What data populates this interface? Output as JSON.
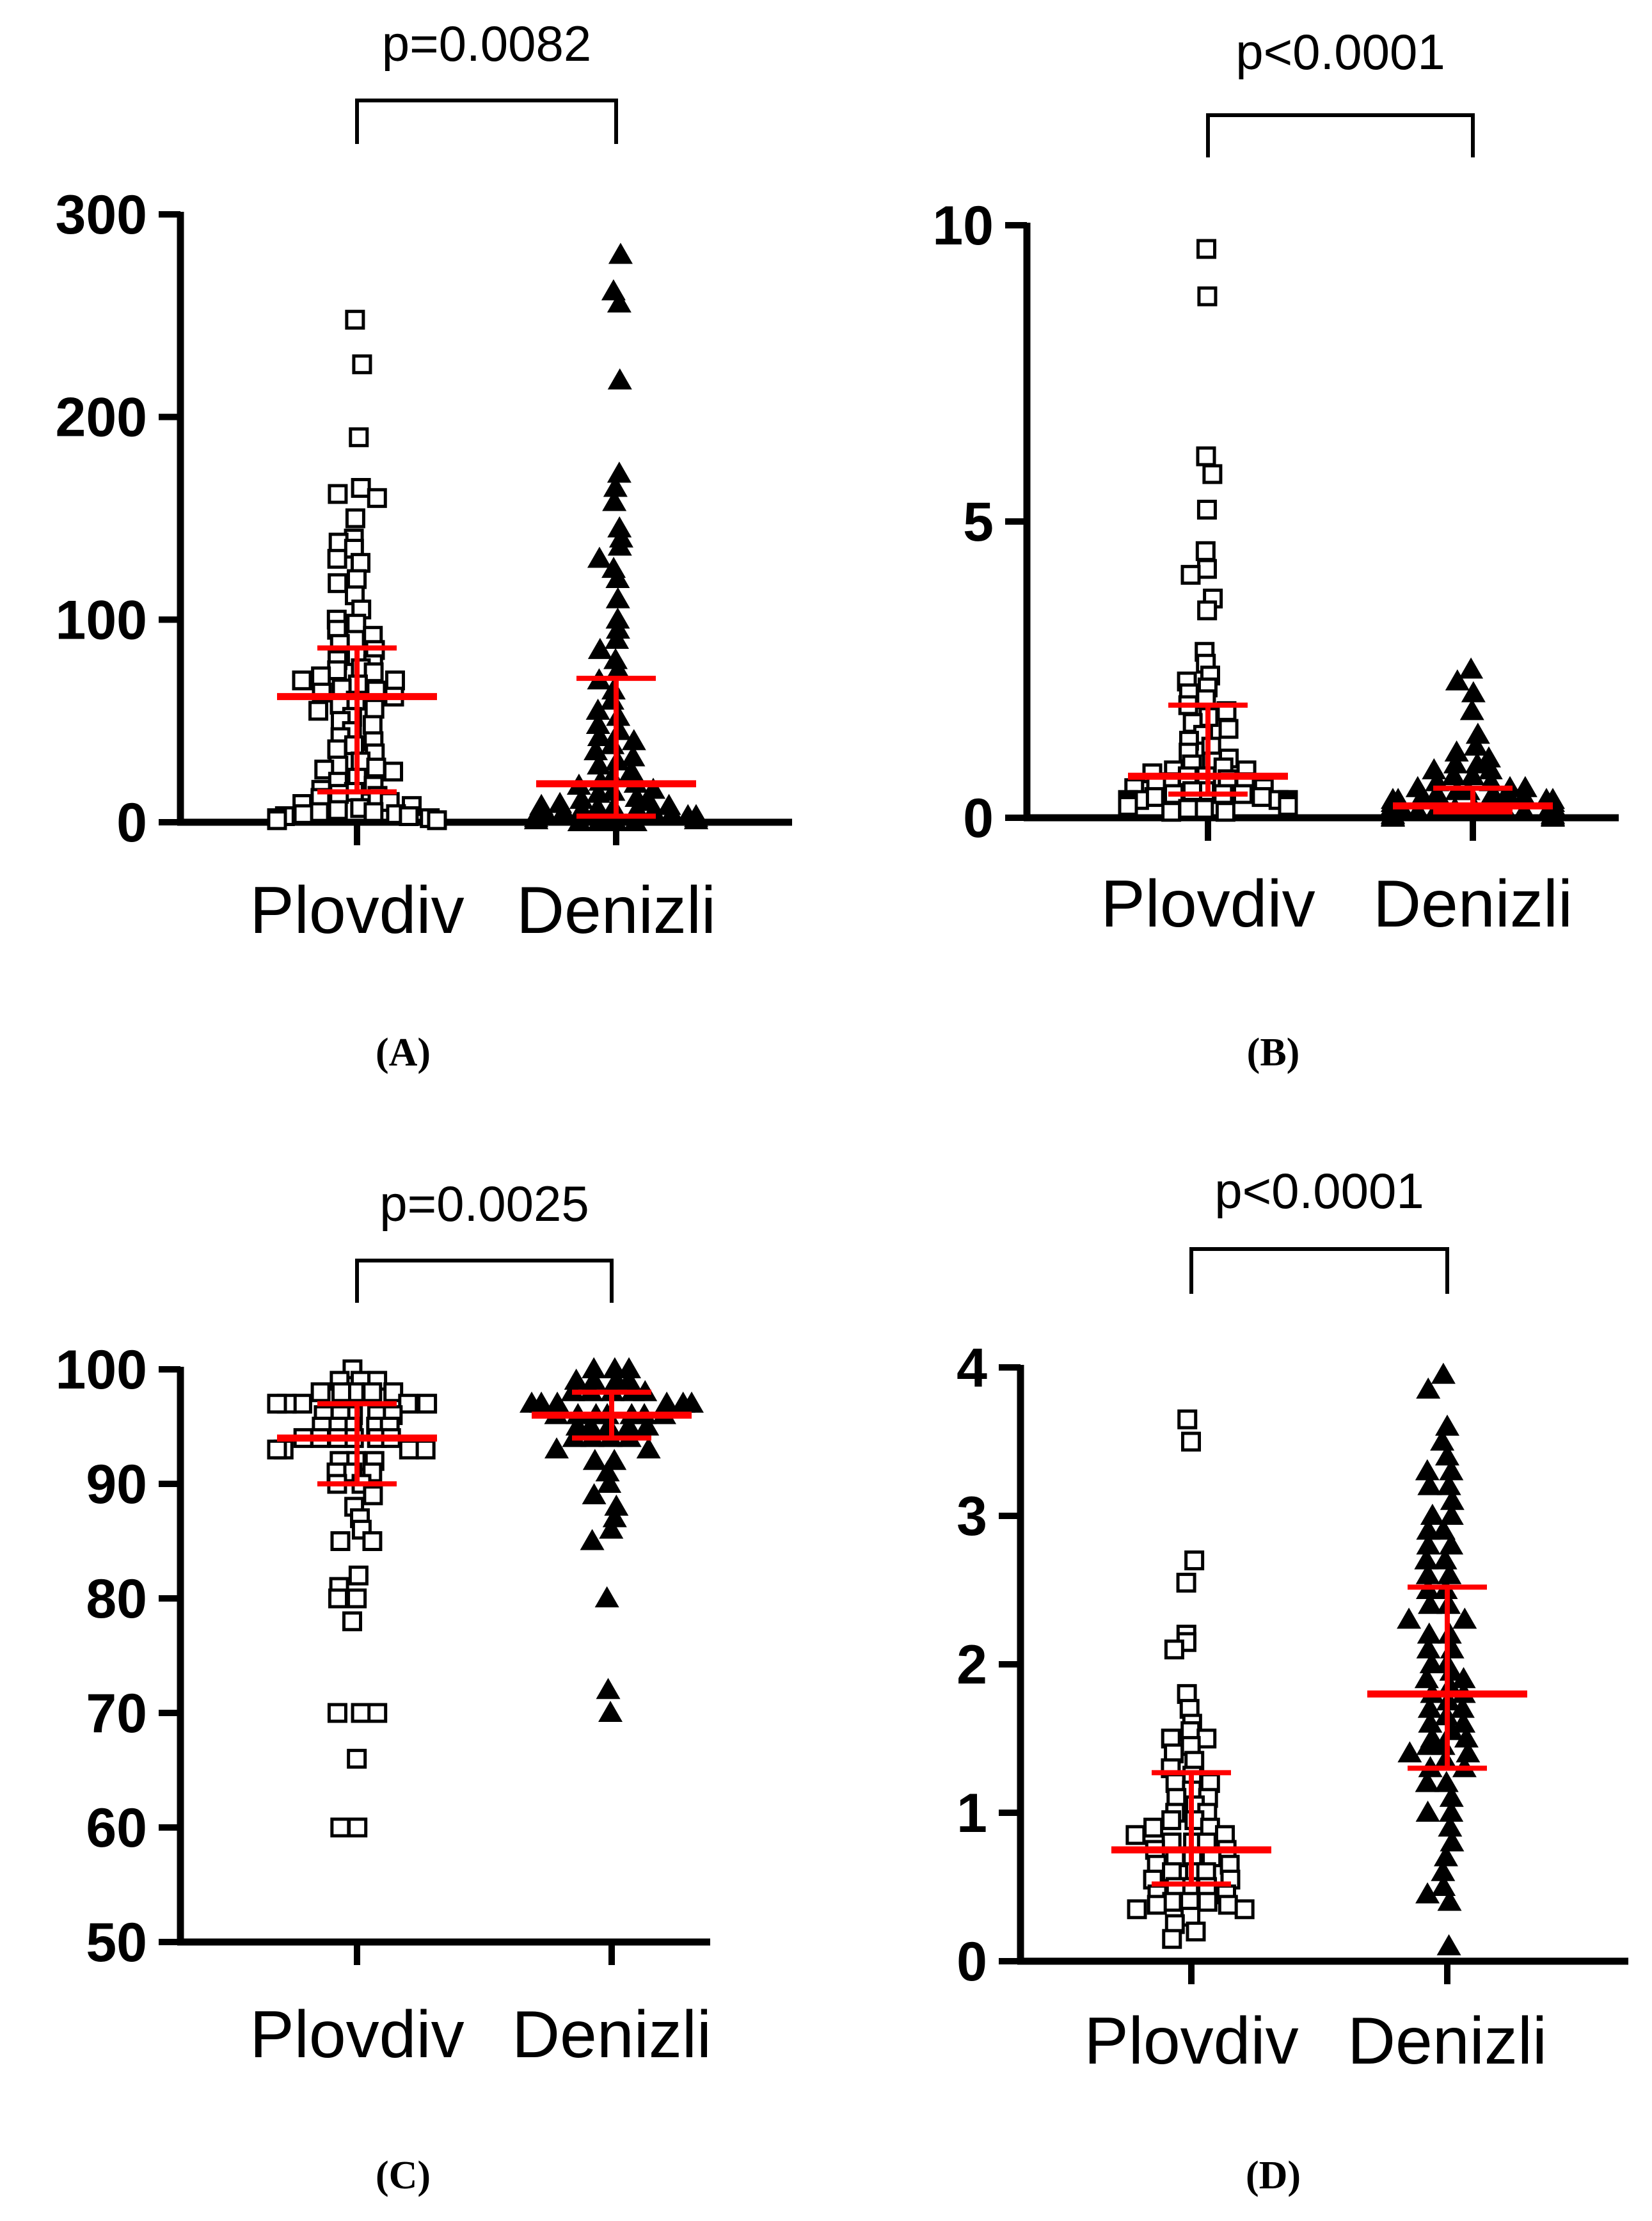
{
  "figure": {
    "title": ""
  },
  "colors": {
    "axis": "#000000",
    "marker": "#000000",
    "summary": "#ff0000",
    "background": "#ffffff"
  },
  "chart_data": [
    {
      "panel": "(A)",
      "type": "scatter",
      "subtype": "column scatter with median and interquartile range",
      "categories": [
        "Plovdiv",
        "Denizli"
      ],
      "ylim": [
        0,
        300
      ],
      "yticks": [
        0,
        100,
        200,
        300
      ],
      "ytick_labels": [
        "0",
        "100",
        "200",
        "300"
      ],
      "xlabel": "",
      "ylabel": "",
      "comparison": {
        "text": "p=0.0082",
        "between": [
          "Plovdiv",
          "Denizli"
        ]
      },
      "series": [
        {
          "name": "Plovdiv",
          "marker": "open-square",
          "median": 62,
          "q1": 15,
          "q3": 86,
          "values": [
            248,
            226,
            190,
            165,
            162,
            160,
            150,
            140,
            138,
            135,
            130,
            128,
            120,
            118,
            112,
            105,
            100,
            98,
            95,
            92,
            90,
            88,
            85,
            82,
            80,
            78,
            76,
            75,
            74,
            72,
            70,
            70,
            68,
            66,
            65,
            64,
            62,
            60,
            58,
            56,
            55,
            52,
            50,
            48,
            45,
            42,
            40,
            38,
            36,
            34,
            30,
            28,
            27,
            26,
            25,
            22,
            20,
            18,
            16,
            15,
            14,
            13,
            12,
            10,
            9,
            8,
            7,
            6,
            5,
            5,
            4,
            4,
            3,
            3,
            2,
            2,
            1,
            1
          ]
        },
        {
          "name": "Denizli",
          "marker": "filled-triangle",
          "median": 19,
          "q1": 3,
          "q3": 71,
          "values": [
            280,
            262,
            256,
            218,
            172,
            165,
            158,
            145,
            140,
            136,
            130,
            125,
            120,
            110,
            100,
            95,
            90,
            85,
            80,
            75,
            70,
            65,
            60,
            55,
            52,
            48,
            45,
            42,
            40,
            38,
            35,
            32,
            30,
            28,
            25,
            22,
            20,
            19,
            18,
            16,
            15,
            14,
            12,
            11,
            10,
            9,
            8,
            8,
            7,
            7,
            6,
            6,
            5,
            5,
            4,
            4,
            3,
            3,
            3,
            2,
            2,
            2,
            1,
            1,
            1,
            1,
            0,
            0,
            0,
            0
          ]
        }
      ]
    },
    {
      "panel": "(B)",
      "type": "scatter",
      "subtype": "column scatter with median and interquartile range",
      "categories": [
        "Plovdiv",
        "Denizli"
      ],
      "ylim": [
        0,
        10
      ],
      "yticks": [
        0,
        5,
        10
      ],
      "ytick_labels": [
        "0",
        "5",
        "10"
      ],
      "xlabel": "",
      "ylabel": "",
      "comparison": {
        "text": "p<0.0001",
        "between": [
          "Plovdiv",
          "Denizli"
        ]
      },
      "series": [
        {
          "name": "Plovdiv",
          "marker": "open-square",
          "median": 0.7,
          "q1": 0.4,
          "q3": 1.9,
          "values": [
            9.6,
            8.8,
            6.1,
            5.8,
            5.2,
            4.5,
            4.2,
            4.1,
            3.7,
            3.5,
            2.8,
            2.6,
            2.4,
            2.3,
            2.2,
            2.1,
            2.0,
            1.9,
            1.8,
            1.7,
            1.6,
            1.5,
            1.4,
            1.3,
            1.2,
            1.1,
            1.0,
            0.95,
            0.9,
            0.85,
            0.8,
            0.8,
            0.75,
            0.7,
            0.7,
            0.65,
            0.6,
            0.6,
            0.55,
            0.5,
            0.5,
            0.45,
            0.45,
            0.4,
            0.4,
            0.4,
            0.35,
            0.35,
            0.3,
            0.3,
            0.3,
            0.3,
            0.25,
            0.25,
            0.25,
            0.2,
            0.2,
            0.2,
            0.15,
            0.15,
            0.1,
            0.1
          ]
        },
        {
          "name": "Denizli",
          "marker": "filled-triangle",
          "median": 0.2,
          "q1": 0.1,
          "q3": 0.5,
          "values": [
            2.5,
            2.3,
            2.1,
            1.8,
            1.4,
            1.2,
            1.1,
            1.0,
            0.9,
            0.9,
            0.8,
            0.8,
            0.7,
            0.7,
            0.6,
            0.6,
            0.5,
            0.5,
            0.5,
            0.45,
            0.45,
            0.4,
            0.4,
            0.4,
            0.35,
            0.35,
            0.3,
            0.3,
            0.3,
            0.3,
            0.25,
            0.25,
            0.25,
            0.2,
            0.2,
            0.2,
            0.2,
            0.2,
            0.15,
            0.15,
            0.15,
            0.15,
            0.1,
            0.1,
            0.1,
            0.1,
            0.1,
            0.05,
            0.05,
            0.05,
            0.05,
            0.05,
            0.02,
            0.02,
            0.02,
            0.0,
            0.0,
            0.0
          ]
        }
      ]
    },
    {
      "panel": "(C)",
      "type": "scatter",
      "subtype": "column scatter with median and interquartile range",
      "categories": [
        "Plovdiv",
        "Denizli"
      ],
      "ylim": [
        50,
        100
      ],
      "yticks": [
        50,
        60,
        70,
        80,
        90,
        100
      ],
      "ytick_labels": [
        "50",
        "60",
        "70",
        "80",
        "90",
        "100"
      ],
      "xlabel": "",
      "ylabel": "",
      "comparison": {
        "text": "p=0.0025",
        "between": [
          "Plovdiv",
          "Denizli"
        ]
      },
      "series": [
        {
          "name": "Plovdiv",
          "marker": "open-square",
          "median": 94,
          "q1": 90,
          "q3": 97,
          "values": [
            100,
            99,
            99,
            99,
            98,
            98,
            98,
            98,
            98,
            97,
            97,
            97,
            97,
            97,
            96,
            96,
            96,
            96,
            96,
            95,
            95,
            95,
            95,
            95,
            94,
            94,
            94,
            94,
            94,
            94,
            93,
            93,
            93,
            93,
            92,
            92,
            92,
            91,
            91,
            91,
            90,
            90,
            89,
            88,
            87,
            86,
            85,
            85,
            82,
            81,
            80,
            80,
            78,
            70,
            70,
            70,
            66,
            60,
            60
          ]
        },
        {
          "name": "Denizli",
          "marker": "filled-triangle",
          "median": 96,
          "q1": 94,
          "q3": 98,
          "values": [
            100,
            100,
            100,
            99,
            99,
            99,
            99,
            98,
            98,
            98,
            98,
            98,
            97,
            97,
            97,
            97,
            97,
            97,
            96,
            96,
            96,
            96,
            96,
            96,
            96,
            95,
            95,
            95,
            95,
            95,
            94,
            94,
            94,
            94,
            93,
            93,
            92,
            92,
            91,
            90,
            89,
            88,
            87,
            86,
            85,
            80,
            72,
            70
          ]
        }
      ]
    },
    {
      "panel": "(D)",
      "type": "scatter",
      "subtype": "column scatter with median and interquartile range",
      "categories": [
        "Plovdiv",
        "Denizli"
      ],
      "ylim": [
        0,
        4
      ],
      "yticks": [
        0,
        1,
        2,
        3,
        4
      ],
      "ytick_labels": [
        "0",
        "1",
        "2",
        "3",
        "4"
      ],
      "xlabel": "",
      "ylabel": "",
      "comparison": {
        "text": "p<0.0001",
        "between": [
          "Plovdiv",
          "Denizli"
        ]
      },
      "series": [
        {
          "name": "Plovdiv",
          "marker": "open-square",
          "median": 0.75,
          "q1": 0.52,
          "q3": 1.27,
          "values": [
            3.65,
            3.5,
            2.7,
            2.55,
            2.2,
            2.15,
            2.1,
            1.8,
            1.7,
            1.6,
            1.55,
            1.5,
            1.5,
            1.45,
            1.4,
            1.35,
            1.3,
            1.25,
            1.2,
            1.2,
            1.15,
            1.1,
            1.1,
            1.05,
            1.0,
            1.0,
            0.95,
            0.95,
            0.9,
            0.9,
            0.85,
            0.85,
            0.8,
            0.8,
            0.8,
            0.75,
            0.75,
            0.7,
            0.7,
            0.7,
            0.65,
            0.65,
            0.6,
            0.6,
            0.6,
            0.55,
            0.55,
            0.5,
            0.5,
            0.5,
            0.45,
            0.45,
            0.4,
            0.4,
            0.4,
            0.38,
            0.38,
            0.35,
            0.35,
            0.3,
            0.25,
            0.2,
            0.15
          ]
        },
        {
          "name": "Denizli",
          "marker": "filled-triangle",
          "median": 1.8,
          "q1": 1.3,
          "q3": 2.52,
          "values": [
            3.95,
            3.85,
            3.6,
            3.5,
            3.4,
            3.3,
            3.3,
            3.2,
            3.2,
            3.1,
            3.0,
            3.0,
            2.9,
            2.9,
            2.8,
            2.8,
            2.7,
            2.7,
            2.6,
            2.6,
            2.5,
            2.5,
            2.4,
            2.4,
            2.3,
            2.3,
            2.2,
            2.2,
            2.1,
            2.1,
            2.0,
            2.0,
            1.95,
            1.9,
            1.9,
            1.85,
            1.8,
            1.8,
            1.75,
            1.7,
            1.7,
            1.65,
            1.6,
            1.6,
            1.55,
            1.5,
            1.5,
            1.45,
            1.45,
            1.4,
            1.4,
            1.35,
            1.3,
            1.3,
            1.2,
            1.2,
            1.1,
            1.0,
            1.0,
            0.9,
            0.8,
            0.7,
            0.6,
            0.5,
            0.45,
            0.4,
            0.1
          ]
        }
      ]
    }
  ]
}
